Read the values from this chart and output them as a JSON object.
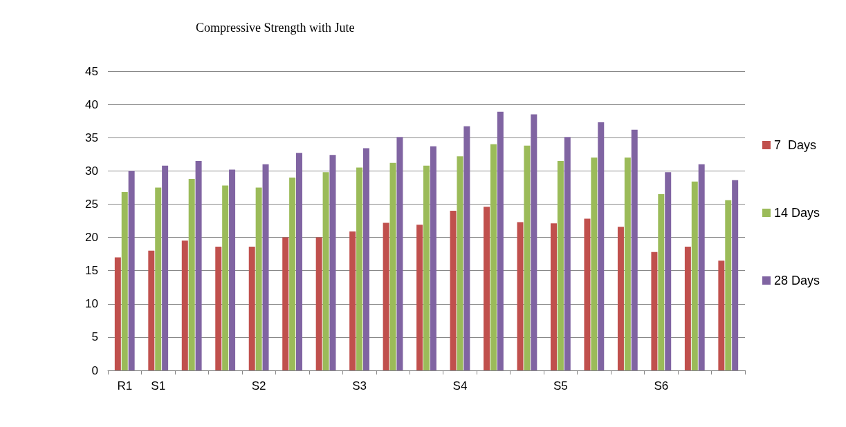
{
  "chart_data": {
    "type": "bar",
    "title": "Compressive Strength with Jute",
    "categories": [
      "R1",
      "S1",
      null,
      null,
      "S2",
      null,
      null,
      "S3",
      null,
      null,
      "S4",
      null,
      null,
      "S5",
      null,
      null,
      "S6",
      null,
      null
    ],
    "series": [
      {
        "name": "7  Days",
        "color": "#c0504d",
        "values": [
          17,
          18,
          19.5,
          18.6,
          18.6,
          20,
          20,
          20.9,
          22.2,
          21.9,
          24,
          24.6,
          22.3,
          22.1,
          22.8,
          21.6,
          17.8,
          18.6,
          16.5
        ]
      },
      {
        "name": "14 Days",
        "color": "#9bbb59",
        "values": [
          26.8,
          27.5,
          28.8,
          27.8,
          27.5,
          29,
          29.8,
          30.5,
          31.2,
          30.8,
          32.2,
          34,
          33.8,
          31.5,
          32,
          32,
          26.5,
          28.4,
          25.6
        ]
      },
      {
        "name": "28 Days",
        "color": "#8064a2",
        "values": [
          30,
          30.8,
          31.5,
          30.2,
          31,
          32.7,
          32.4,
          33.4,
          35.1,
          33.7,
          36.7,
          38.9,
          38.5,
          35.1,
          37.3,
          36.2,
          29.8,
          31,
          28.6
        ]
      }
    ],
    "ylim": [
      0,
      45
    ],
    "yticks": [
      0,
      5,
      10,
      15,
      20,
      25,
      30,
      35,
      40,
      45
    ],
    "grid": "y",
    "legend": "right"
  }
}
